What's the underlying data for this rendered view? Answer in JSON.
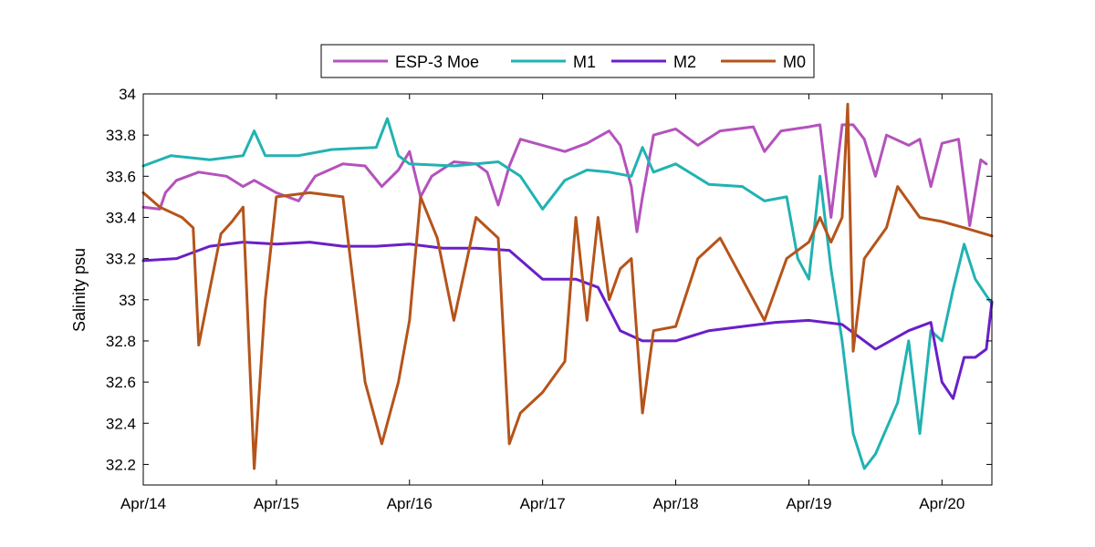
{
  "chart_data": {
    "type": "line",
    "title": "",
    "xlabel": "",
    "ylabel": "Salinity psu",
    "xlim": [
      "2015-04-14",
      "2015-04-20 09:00"
    ],
    "ylim": [
      32.1,
      34.0
    ],
    "x_ticks": [
      "Apr/14",
      "Apr/15",
      "Apr/16",
      "Apr/17",
      "Apr/18",
      "Apr/19",
      "Apr/20"
    ],
    "y_ticks": [
      "32.2",
      "32.4",
      "32.6",
      "32.8",
      "33",
      "33.2",
      "33.4",
      "33.6",
      "33.8",
      "34"
    ],
    "grid": false,
    "legend_position": "top-center",
    "series": [
      {
        "name": "ESP-3 Moe",
        "color": "#b452bc",
        "points": [
          [
            "Apr 14 00:00",
            33.45
          ],
          [
            "Apr 14 03:00",
            33.44
          ],
          [
            "Apr 14 04:00",
            33.52
          ],
          [
            "Apr 14 06:00",
            33.58
          ],
          [
            "Apr 14 10:00",
            33.62
          ],
          [
            "Apr 14 15:00",
            33.6
          ],
          [
            "Apr 14 18:00",
            33.55
          ],
          [
            "Apr 14 20:00",
            33.58
          ],
          [
            "Apr 15 00:00",
            33.52
          ],
          [
            "Apr 15 04:00",
            33.48
          ],
          [
            "Apr 15 07:00",
            33.6
          ],
          [
            "Apr 15 12:00",
            33.66
          ],
          [
            "Apr 15 16:00",
            33.65
          ],
          [
            "Apr 15 19:00",
            33.55
          ],
          [
            "Apr 15 22:00",
            33.63
          ],
          [
            "Apr 16 00:00",
            33.72
          ],
          [
            "Apr 16 02:00",
            33.5
          ],
          [
            "Apr 16 04:00",
            33.6
          ],
          [
            "Apr 16 08:00",
            33.67
          ],
          [
            "Apr 16 12:00",
            33.66
          ],
          [
            "Apr 16 14:00",
            33.62
          ],
          [
            "Apr 16 16:00",
            33.46
          ],
          [
            "Apr 16 18:00",
            33.65
          ],
          [
            "Apr 16 20:00",
            33.78
          ],
          [
            "Apr 17 00:00",
            33.75
          ],
          [
            "Apr 17 04:00",
            33.72
          ],
          [
            "Apr 17 08:00",
            33.76
          ],
          [
            "Apr 17 12:00",
            33.82
          ],
          [
            "Apr 17 14:00",
            33.75
          ],
          [
            "Apr 17 16:00",
            33.55
          ],
          [
            "Apr 17 17:00",
            33.33
          ],
          [
            "Apr 17 18:00",
            33.5
          ],
          [
            "Apr 17 20:00",
            33.8
          ],
          [
            "Apr 18 00:00",
            33.83
          ],
          [
            "Apr 18 04:00",
            33.75
          ],
          [
            "Apr 18 08:00",
            33.82
          ],
          [
            "Apr 18 14:00",
            33.84
          ],
          [
            "Apr 18 16:00",
            33.72
          ],
          [
            "Apr 18 19:00",
            33.82
          ],
          [
            "Apr 19 00:00",
            33.84
          ],
          [
            "Apr 19 02:00",
            33.85
          ],
          [
            "Apr 19 04:00",
            33.4
          ],
          [
            "Apr 19 06:00",
            33.85
          ],
          [
            "Apr 19 08:00",
            33.85
          ],
          [
            "Apr 19 10:00",
            33.78
          ],
          [
            "Apr 19 12:00",
            33.6
          ],
          [
            "Apr 19 14:00",
            33.8
          ],
          [
            "Apr 19 18:00",
            33.75
          ],
          [
            "Apr 19 20:00",
            33.78
          ],
          [
            "Apr 19 22:00",
            33.55
          ],
          [
            "Apr 20 00:00",
            33.76
          ],
          [
            "Apr 20 03:00",
            33.78
          ],
          [
            "Apr 20 05:00",
            33.36
          ],
          [
            "Apr 20 07:00",
            33.68
          ],
          [
            "Apr 20 08:00",
            33.66
          ]
        ]
      },
      {
        "name": "M1",
        "color": "#22b2b2",
        "points": [
          [
            "Apr 14 00:00",
            33.65
          ],
          [
            "Apr 14 05:00",
            33.7
          ],
          [
            "Apr 14 12:00",
            33.68
          ],
          [
            "Apr 14 18:00",
            33.7
          ],
          [
            "Apr 14 20:00",
            33.82
          ],
          [
            "Apr 14 22:00",
            33.7
          ],
          [
            "Apr 15 04:00",
            33.7
          ],
          [
            "Apr 15 10:00",
            33.73
          ],
          [
            "Apr 15 18:00",
            33.74
          ],
          [
            "Apr 15 20:00",
            33.88
          ],
          [
            "Apr 15 22:00",
            33.7
          ],
          [
            "Apr 16 00:00",
            33.66
          ],
          [
            "Apr 16 08:00",
            33.65
          ],
          [
            "Apr 16 16:00",
            33.67
          ],
          [
            "Apr 16 20:00",
            33.6
          ],
          [
            "Apr 17 00:00",
            33.44
          ],
          [
            "Apr 17 04:00",
            33.58
          ],
          [
            "Apr 17 08:00",
            33.63
          ],
          [
            "Apr 17 12:00",
            33.62
          ],
          [
            "Apr 17 16:00",
            33.6
          ],
          [
            "Apr 17 18:00",
            33.74
          ],
          [
            "Apr 17 20:00",
            33.62
          ],
          [
            "Apr 18 00:00",
            33.66
          ],
          [
            "Apr 18 06:00",
            33.56
          ],
          [
            "Apr 18 12:00",
            33.55
          ],
          [
            "Apr 18 16:00",
            33.48
          ],
          [
            "Apr 18 20:00",
            33.5
          ],
          [
            "Apr 18 22:00",
            33.2
          ],
          [
            "Apr 19 00:00",
            33.1
          ],
          [
            "Apr 19 02:00",
            33.6
          ],
          [
            "Apr 19 04:00",
            33.15
          ],
          [
            "Apr 19 06:00",
            32.8
          ],
          [
            "Apr 19 08:00",
            32.35
          ],
          [
            "Apr 19 10:00",
            32.18
          ],
          [
            "Apr 19 12:00",
            32.25
          ],
          [
            "Apr 19 16:00",
            32.5
          ],
          [
            "Apr 19 18:00",
            32.8
          ],
          [
            "Apr 19 20:00",
            32.35
          ],
          [
            "Apr 19 22:00",
            32.85
          ],
          [
            "Apr 20 00:00",
            32.8
          ],
          [
            "Apr 20 02:00",
            33.05
          ],
          [
            "Apr 20 04:00",
            33.27
          ],
          [
            "Apr 20 06:00",
            33.1
          ],
          [
            "Apr 20 09:00",
            32.98
          ]
        ]
      },
      {
        "name": "M2",
        "color": "#6a1fc8",
        "points": [
          [
            "Apr 14 00:00",
            33.19
          ],
          [
            "Apr 14 06:00",
            33.2
          ],
          [
            "Apr 14 12:00",
            33.26
          ],
          [
            "Apr 14 18:00",
            33.28
          ],
          [
            "Apr 15 00:00",
            33.27
          ],
          [
            "Apr 15 06:00",
            33.28
          ],
          [
            "Apr 15 12:00",
            33.26
          ],
          [
            "Apr 15 18:00",
            33.26
          ],
          [
            "Apr 16 00:00",
            33.27
          ],
          [
            "Apr 16 06:00",
            33.25
          ],
          [
            "Apr 16 12:00",
            33.25
          ],
          [
            "Apr 16 18:00",
            33.24
          ],
          [
            "Apr 17 00:00",
            33.1
          ],
          [
            "Apr 17 06:00",
            33.1
          ],
          [
            "Apr 17 10:00",
            33.06
          ],
          [
            "Apr 17 14:00",
            32.85
          ],
          [
            "Apr 17 18:00",
            32.8
          ],
          [
            "Apr 18 00:00",
            32.8
          ],
          [
            "Apr 18 06:00",
            32.85
          ],
          [
            "Apr 18 12:00",
            32.87
          ],
          [
            "Apr 18 18:00",
            32.89
          ],
          [
            "Apr 19 00:00",
            32.9
          ],
          [
            "Apr 19 06:00",
            32.88
          ],
          [
            "Apr 19 12:00",
            32.76
          ],
          [
            "Apr 19 18:00",
            32.85
          ],
          [
            "Apr 19 22:00",
            32.89
          ],
          [
            "Apr 20 00:00",
            32.6
          ],
          [
            "Apr 20 02:00",
            32.52
          ],
          [
            "Apr 20 04:00",
            32.72
          ],
          [
            "Apr 20 06:00",
            32.72
          ],
          [
            "Apr 20 08:00",
            32.76
          ],
          [
            "Apr 20 09:00",
            32.99
          ]
        ]
      },
      {
        "name": "M0",
        "color": "#b5541a",
        "points": [
          [
            "Apr 14 00:00",
            33.52
          ],
          [
            "Apr 14 03:00",
            33.45
          ],
          [
            "Apr 14 07:00",
            33.4
          ],
          [
            "Apr 14 09:00",
            33.35
          ],
          [
            "Apr 14 10:00",
            32.78
          ],
          [
            "Apr 14 12:00",
            33.05
          ],
          [
            "Apr 14 14:00",
            33.32
          ],
          [
            "Apr 14 16:00",
            33.38
          ],
          [
            "Apr 14 18:00",
            33.45
          ],
          [
            "Apr 14 20:00",
            32.18
          ],
          [
            "Apr 14 22:00",
            33.0
          ],
          [
            "Apr 15 00:00",
            33.5
          ],
          [
            "Apr 15 06:00",
            33.52
          ],
          [
            "Apr 15 12:00",
            33.5
          ],
          [
            "Apr 15 16:00",
            32.6
          ],
          [
            "Apr 15 19:00",
            32.3
          ],
          [
            "Apr 15 22:00",
            32.6
          ],
          [
            "Apr 16 00:00",
            32.9
          ],
          [
            "Apr 16 02:00",
            33.5
          ],
          [
            "Apr 16 05:00",
            33.3
          ],
          [
            "Apr 16 08:00",
            32.9
          ],
          [
            "Apr 16 12:00",
            33.4
          ],
          [
            "Apr 16 16:00",
            33.3
          ],
          [
            "Apr 16 18:00",
            32.3
          ],
          [
            "Apr 16 20:00",
            32.45
          ],
          [
            "Apr 17 00:00",
            32.55
          ],
          [
            "Apr 17 04:00",
            32.7
          ],
          [
            "Apr 17 06:00",
            33.4
          ],
          [
            "Apr 17 08:00",
            32.9
          ],
          [
            "Apr 17 10:00",
            33.4
          ],
          [
            "Apr 17 12:00",
            33.0
          ],
          [
            "Apr 17 14:00",
            33.15
          ],
          [
            "Apr 17 16:00",
            33.2
          ],
          [
            "Apr 17 18:00",
            32.45
          ],
          [
            "Apr 17 20:00",
            32.85
          ],
          [
            "Apr 18 00:00",
            32.87
          ],
          [
            "Apr 18 04:00",
            33.2
          ],
          [
            "Apr 18 08:00",
            33.3
          ],
          [
            "Apr 18 12:00",
            33.1
          ],
          [
            "Apr 18 16:00",
            32.9
          ],
          [
            "Apr 18 20:00",
            33.2
          ],
          [
            "Apr 19 00:00",
            33.28
          ],
          [
            "Apr 19 02:00",
            33.4
          ],
          [
            "Apr 19 04:00",
            33.28
          ],
          [
            "Apr 19 06:00",
            33.4
          ],
          [
            "Apr 19 07:00",
            33.95
          ],
          [
            "Apr 19 08:00",
            32.75
          ],
          [
            "Apr 19 10:00",
            33.2
          ],
          [
            "Apr 19 14:00",
            33.35
          ],
          [
            "Apr 19 16:00",
            33.55
          ],
          [
            "Apr 19 20:00",
            33.4
          ],
          [
            "Apr 20 00:00",
            33.38
          ],
          [
            "Apr 20 04:00",
            33.35
          ],
          [
            "Apr 20 09:00",
            33.31
          ]
        ]
      }
    ]
  }
}
